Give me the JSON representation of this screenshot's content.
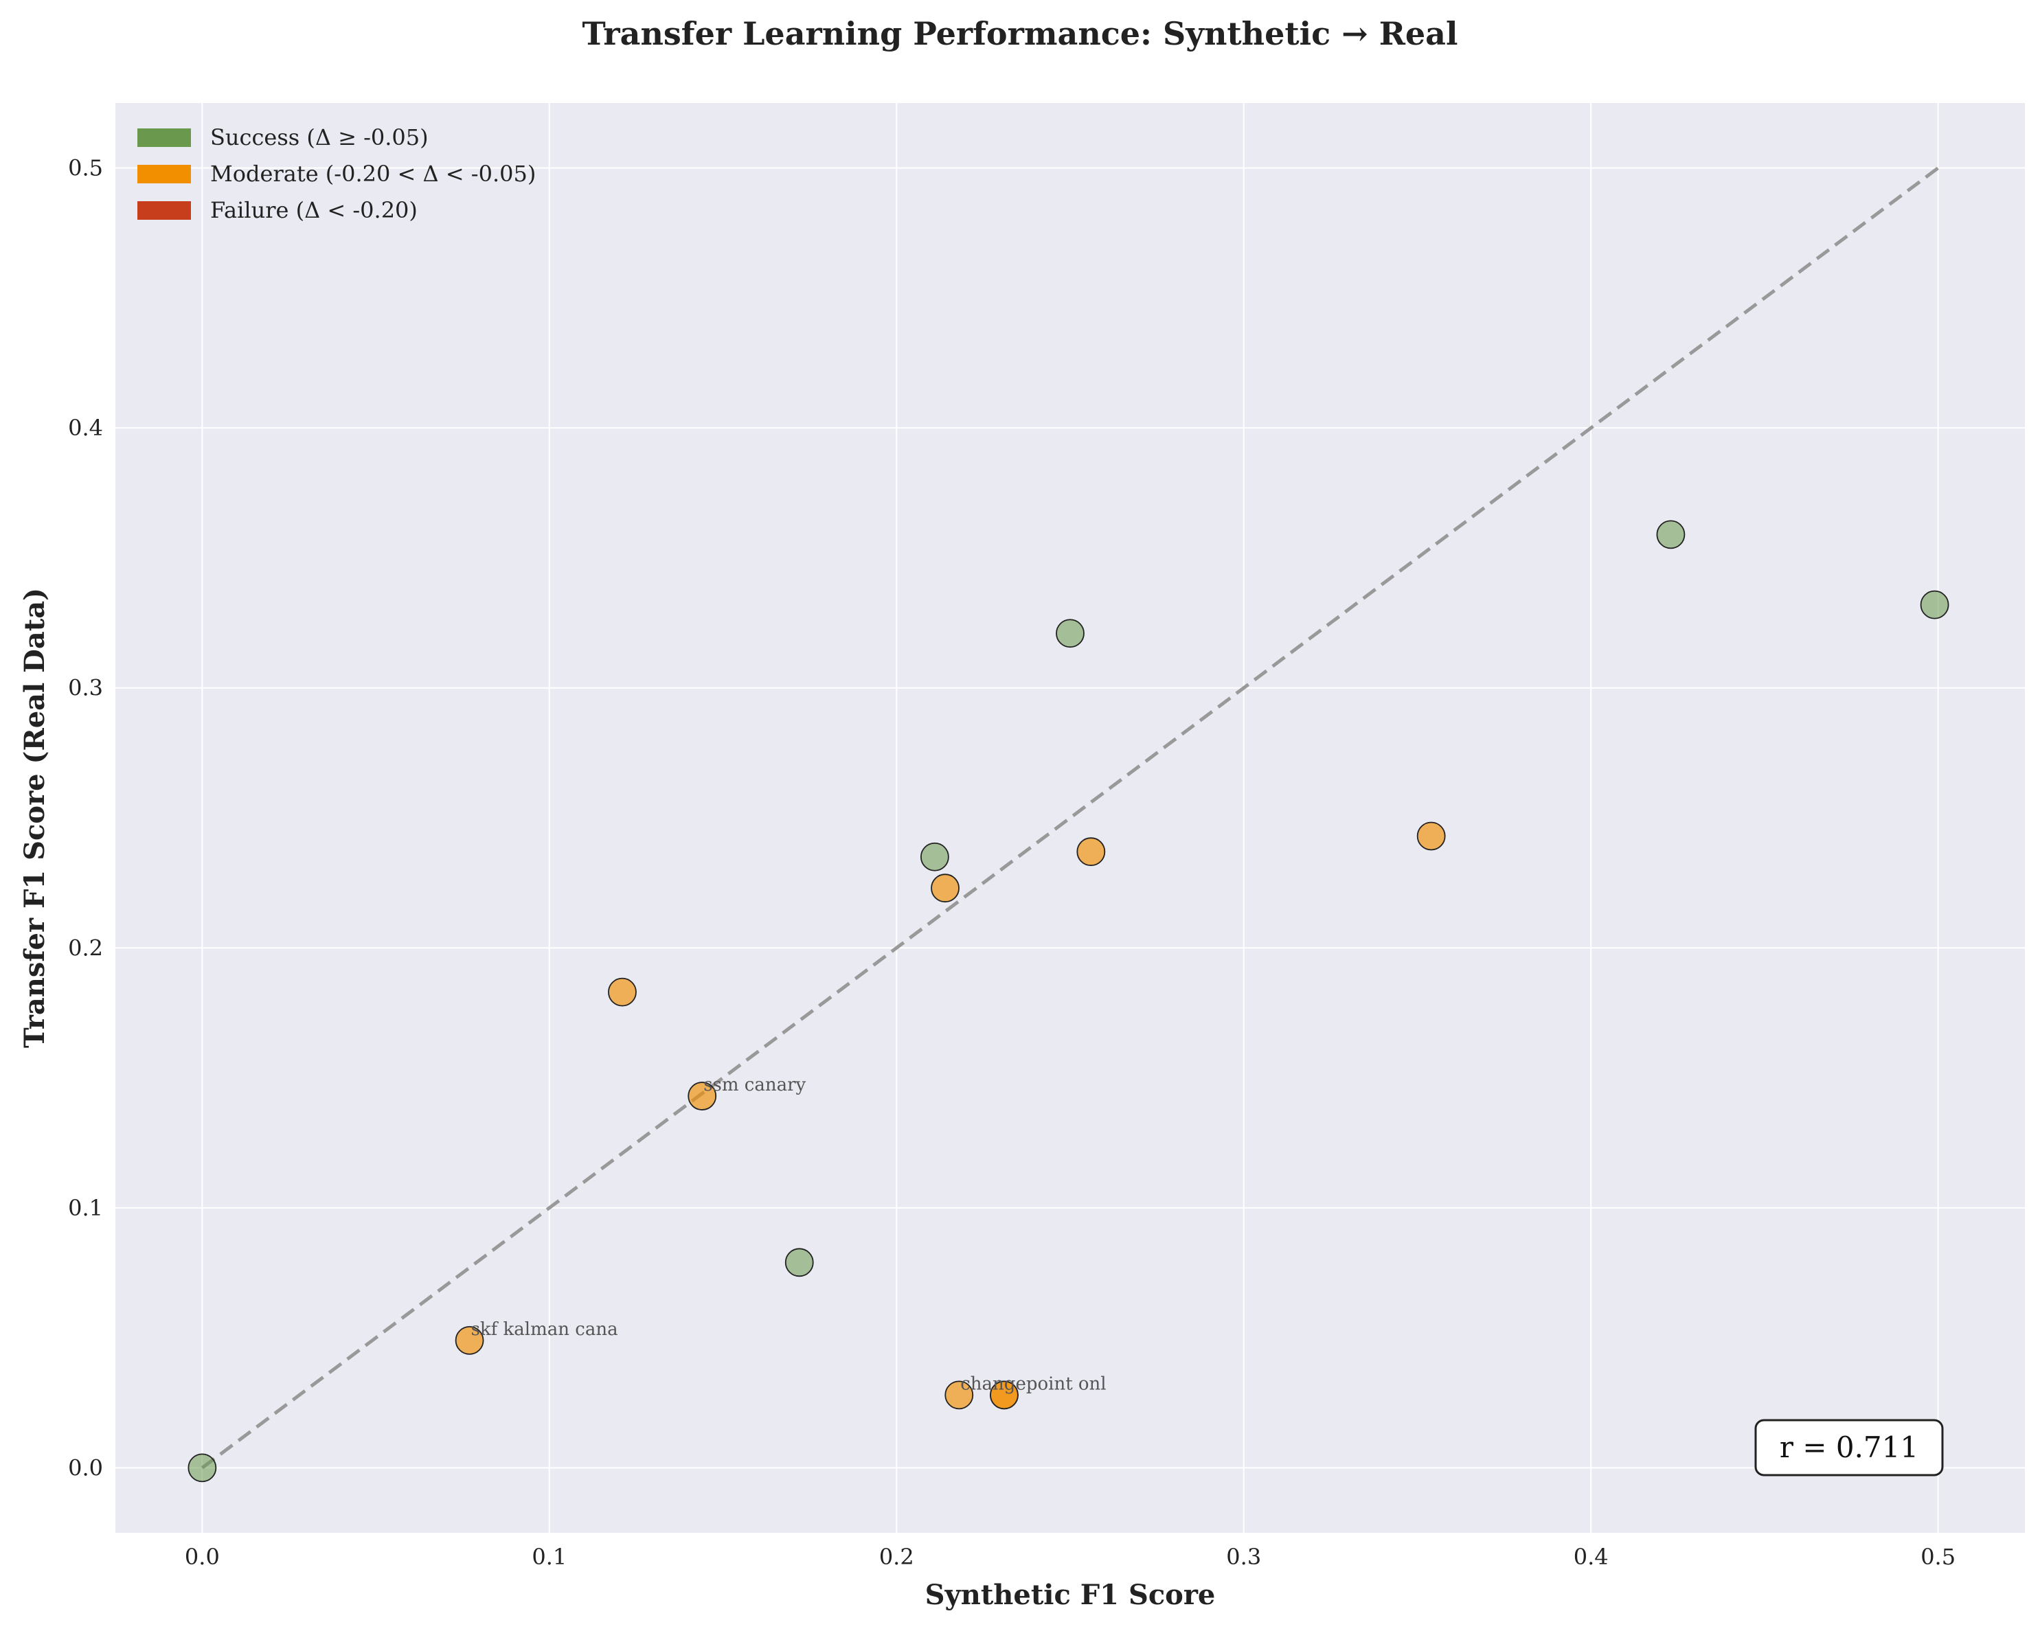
{
  "chart_data": {
    "type": "scatter",
    "title": "Transfer Learning Performance: Synthetic → Real",
    "xlabel": "Synthetic F1 Score",
    "ylabel": "Transfer F1 Score (Real Data)",
    "xlim": [
      -0.025,
      0.525
    ],
    "ylim": [
      -0.025,
      0.525
    ],
    "xticks": [
      0.0,
      0.1,
      0.2,
      0.3,
      0.4,
      0.5
    ],
    "yticks": [
      0.0,
      0.1,
      0.2,
      0.3,
      0.4,
      0.5
    ],
    "xtick_labels": [
      "0.0",
      "0.1",
      "0.2",
      "0.3",
      "0.4",
      "0.5"
    ],
    "ytick_labels": [
      "0.0",
      "0.1",
      "0.2",
      "0.3",
      "0.4",
      "0.5"
    ],
    "grid": true,
    "legend_position": "top-left",
    "legend": [
      {
        "label": "Success (Δ ≥ -0.05)",
        "color": "#6a994e"
      },
      {
        "label": "Moderate (-0.20 < Δ < -0.05)",
        "color": "#f18f01"
      },
      {
        "label": "Failure (Δ < -0.20)",
        "color": "#c73e1d"
      }
    ],
    "reference_line": {
      "style": "dashed",
      "from": [
        0.0,
        0.0
      ],
      "to": [
        0.5,
        0.5
      ],
      "color": "#999999"
    },
    "points": [
      {
        "x": 0.0,
        "y": 0.0,
        "category": "success"
      },
      {
        "x": 0.172,
        "y": 0.079,
        "category": "success"
      },
      {
        "x": 0.211,
        "y": 0.235,
        "category": "success"
      },
      {
        "x": 0.25,
        "y": 0.321,
        "category": "success"
      },
      {
        "x": 0.423,
        "y": 0.359,
        "category": "success"
      },
      {
        "x": 0.499,
        "y": 0.332,
        "category": "success"
      },
      {
        "x": 0.077,
        "y": 0.049,
        "category": "moderate",
        "label": "skf kalman cana"
      },
      {
        "x": 0.121,
        "y": 0.183,
        "category": "moderate"
      },
      {
        "x": 0.144,
        "y": 0.143,
        "category": "moderate",
        "label": "ssm canary"
      },
      {
        "x": 0.214,
        "y": 0.223,
        "category": "moderate"
      },
      {
        "x": 0.218,
        "y": 0.028,
        "category": "moderate",
        "label": "changepoint onl"
      },
      {
        "x": 0.231,
        "y": 0.028,
        "category": "moderate"
      },
      {
        "x": 0.231,
        "y": 0.028,
        "category": "moderate"
      },
      {
        "x": 0.256,
        "y": 0.237,
        "category": "moderate"
      },
      {
        "x": 0.354,
        "y": 0.243,
        "category": "moderate"
      }
    ],
    "correlation_label": "r = 0.711",
    "colors": {
      "success": "#6a994e",
      "moderate": "#f18f01",
      "failure": "#c73e1d",
      "plot_background": "#eaeaf2",
      "grid": "#ffffff"
    }
  }
}
